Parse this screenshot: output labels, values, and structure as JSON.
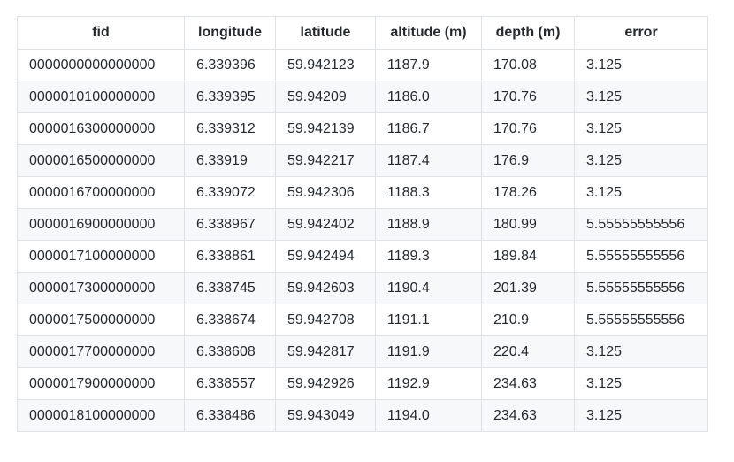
{
  "table": {
    "headers": [
      "fid",
      "longitude",
      "latitude",
      "altitude (m)",
      "depth (m)",
      "error"
    ],
    "rows": [
      [
        "0000000000000000",
        "6.339396",
        "59.942123",
        "1187.9",
        "170.08",
        "3.125"
      ],
      [
        "0000010100000000",
        "6.339395",
        "59.94209",
        "1186.0",
        "170.76",
        "3.125"
      ],
      [
        "0000016300000000",
        "6.339312",
        "59.942139",
        "1186.7",
        "170.76",
        "3.125"
      ],
      [
        "0000016500000000",
        "6.33919",
        "59.942217",
        "1187.4",
        "176.9",
        "3.125"
      ],
      [
        "0000016700000000",
        "6.339072",
        "59.942306",
        "1188.3",
        "178.26",
        "3.125"
      ],
      [
        "0000016900000000",
        "6.338967",
        "59.942402",
        "1188.9",
        "180.99",
        "5.55555555556"
      ],
      [
        "0000017100000000",
        "6.338861",
        "59.942494",
        "1189.3",
        "189.84",
        "5.55555555556"
      ],
      [
        "0000017300000000",
        "6.338745",
        "59.942603",
        "1190.4",
        "201.39",
        "5.55555555556"
      ],
      [
        "0000017500000000",
        "6.338674",
        "59.942708",
        "1191.1",
        "210.9",
        "5.55555555556"
      ],
      [
        "0000017700000000",
        "6.338608",
        "59.942817",
        "1191.9",
        "220.4",
        "3.125"
      ],
      [
        "0000017900000000",
        "6.338557",
        "59.942926",
        "1192.9",
        "234.63",
        "3.125"
      ],
      [
        "0000018100000000",
        "6.338486",
        "59.943049",
        "1194.0",
        "234.63",
        "3.125"
      ]
    ]
  },
  "colors": {
    "border": "#dfe2e5",
    "stripe": "#f6f8fa",
    "text": "#24292e"
  }
}
